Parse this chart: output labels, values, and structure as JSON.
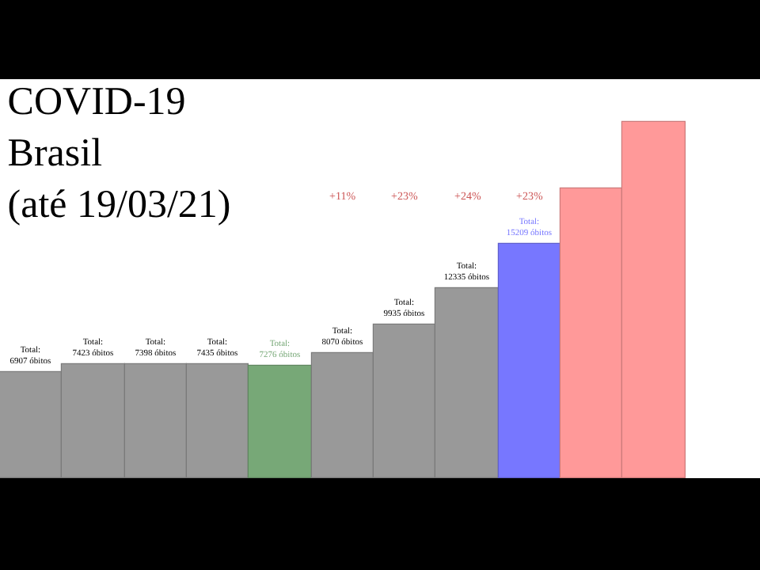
{
  "chart_data": {
    "type": "bar",
    "title": "COVID-19\nBrasil\n(até 19/03/21)",
    "categories": [
      null,
      null,
      null,
      null,
      null,
      null,
      null,
      null,
      null,
      null,
      null
    ],
    "values": [
      6907,
      7423,
      7398,
      7435,
      7276,
      8070,
      9935,
      12335,
      15209,
      18800,
      23100
    ],
    "colors": [
      "#999999",
      "#999999",
      "#999999",
      "#999999",
      "#77a877",
      "#999999",
      "#999999",
      "#999999",
      "#7777ff",
      "#ff9999",
      "#ff9999"
    ],
    "value_labels": [
      "Total:\n6907 óbitos",
      "Total:\n7423 óbitos",
      "Total:\n7398 óbitos",
      "Total:\n7435 óbitos",
      "Total:\n7276 óbitos",
      "Total:\n8070 óbitos",
      "Total:\n9935 óbitos",
      "Total:\n12335 óbitos",
      "Total:\n15209 óbitos",
      null,
      null
    ],
    "annotations": [
      "+11%",
      "+23%",
      "+24%",
      "+23%"
    ]
  }
}
